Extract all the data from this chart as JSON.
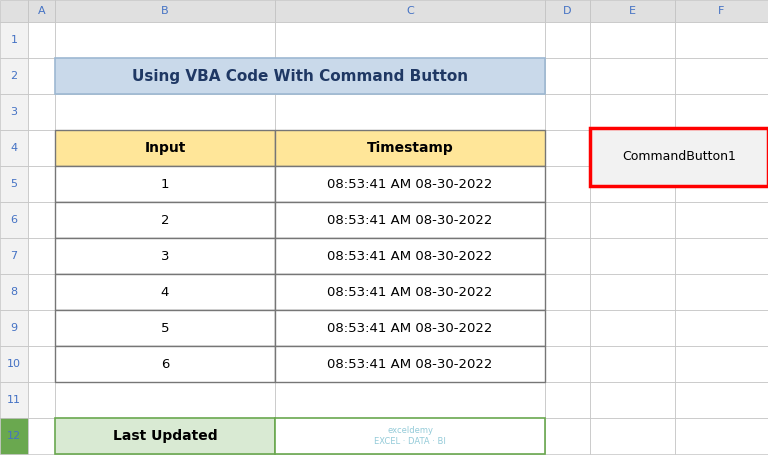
{
  "title": "Using VBA Code With Command Button",
  "title_bg": "#C9D9EA",
  "title_color": "#1F3864",
  "headers": [
    "Input",
    "Timestamp"
  ],
  "header_bg": "#FFE699",
  "rows": [
    [
      "1",
      "08:53:41 AM 08-30-2022"
    ],
    [
      "2",
      "08:53:41 AM 08-30-2022"
    ],
    [
      "3",
      "08:53:41 AM 08-30-2022"
    ],
    [
      "4",
      "08:53:41 AM 08-30-2022"
    ],
    [
      "5",
      "08:53:41 AM 08-30-2022"
    ],
    [
      "6",
      "08:53:41 AM 08-30-2022"
    ]
  ],
  "footer_label": "Last Updated",
  "footer_bg": "#D9EAD3",
  "footer_border": "#6AA84F",
  "command_button_label": "CommandButton1",
  "command_button_border": "#FF0000",
  "command_button_bg": "#F2F2F2",
  "col_letters": [
    "A",
    "B",
    "C",
    "D",
    "E",
    "F"
  ],
  "row_count": 12,
  "bg_color": "#FFFFFF",
  "header_bg_color": "#E0E0E0",
  "grid_color": "#C0C0C0",
  "cell_border_color": "#767676",
  "rownr_color": "#4472C4",
  "rownr_bg": "#F2F2F2"
}
